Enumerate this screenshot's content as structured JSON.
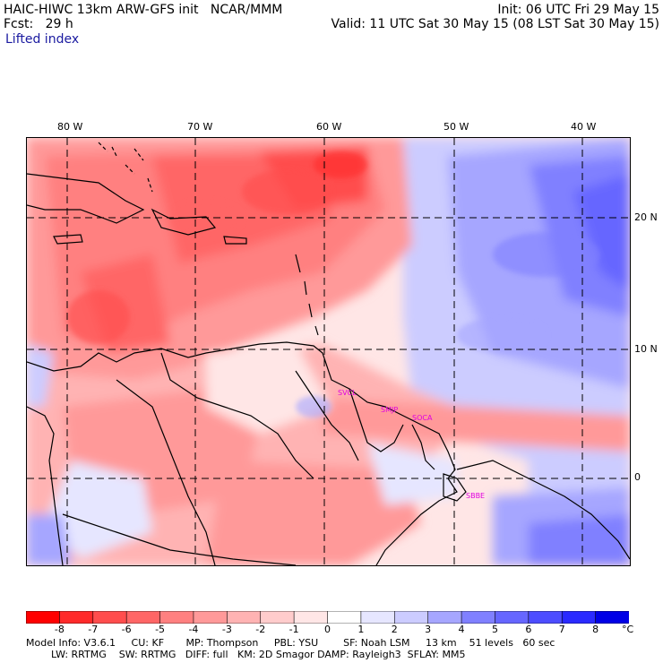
{
  "header": {
    "model_line": "HAIC-HIWC 13km ARW-GFS init   NCAR/MMM",
    "init_line": "Init: 06 UTC Fri 29 May 15",
    "fcst_line": "Fcst:   29 h",
    "valid_line": "Valid: 11 UTC Sat 30 May 15 (08 LST Sat 30 May 15)",
    "field_name": "Lifted index"
  },
  "map": {
    "lon_labels": [
      "80 W",
      "70 W",
      "60 W",
      "50 W",
      "40 W"
    ],
    "lat_labels": [
      "20 N",
      "10 N",
      "0"
    ],
    "stations": [
      "SVCL",
      "SMJP",
      "SOCA",
      "SBBE"
    ]
  },
  "colorbar": {
    "tick_labels": [
      "-8",
      "-7",
      "-6",
      "-5",
      "-4",
      "-3",
      "-2",
      "-1",
      "0",
      "1",
      "2",
      "3",
      "4",
      "5",
      "6",
      "7",
      "8"
    ],
    "unit": "°C",
    "colors": [
      "#ff0000",
      "#ff2a2a",
      "#ff4d4d",
      "#ff6666",
      "#ff8080",
      "#ff9999",
      "#ffb3b3",
      "#ffcccc",
      "#ffe6e6",
      "#ffffff",
      "#e6e6ff",
      "#ccccff",
      "#a6a6ff",
      "#8080ff",
      "#6666ff",
      "#4d4dff",
      "#2a2aff",
      "#0000e6"
    ]
  },
  "footer": {
    "line1": "Model Info: V3.6.1     CU: KF       MP: Thompson     PBL: YSU        SF: Noah LSM     13 km    51 levels   60 sec",
    "line2": "        LW: RRTMG    SW: RRTMG   DIFF: full   KM: 2D Smagor DAMP: Rayleigh3  SFLAY: MM5"
  }
}
